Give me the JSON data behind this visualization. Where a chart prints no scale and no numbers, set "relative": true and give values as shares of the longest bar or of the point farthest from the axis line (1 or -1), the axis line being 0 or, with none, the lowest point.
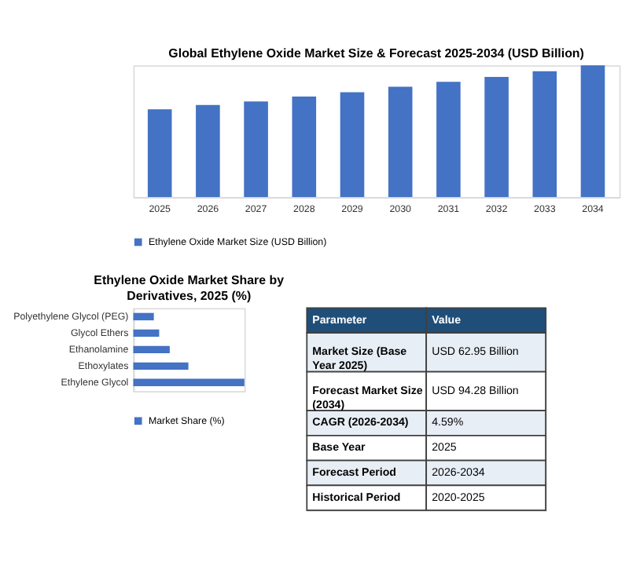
{
  "chart_data": [
    {
      "type": "bar",
      "title": "Global Ethylene Oxide Market Size & Forecast 2025-2034 (USD Billion)",
      "relative": true,
      "legend": "bottom",
      "categories": [
        "2025",
        "2026",
        "2027",
        "2028",
        "2029",
        "2030",
        "2031",
        "2032",
        "2033",
        "2034"
      ],
      "series": [
        {
          "name": "Ethylene Oxide Market Size (USD Billion)",
          "color": "#4472c4",
          "values": [
            0.666,
            0.699,
            0.726,
            0.764,
            0.797,
            0.838,
            0.875,
            0.912,
            0.956,
            1
          ]
        }
      ]
    },
    {
      "type": "bar",
      "title": "Ethylene Oxide Market Share by Derivatives, 2025 (%)",
      "relative": true,
      "orientation": "horizontal",
      "legend": "bottom",
      "categories": [
        "Polyethylene Glycol (PEG)",
        "Glycol Ethers",
        "Ethanolamine",
        "Ethoxylates",
        "Ethylene Glycol"
      ],
      "series": [
        {
          "name": "Market Share (%)",
          "color": "#4472c4",
          "values": [
            0.185,
            0.233,
            0.328,
            0.496,
            1
          ]
        }
      ]
    },
    {
      "type": "other",
      "annotations": [
        "Parameter",
        "Value",
        "Market Size (Base Year 2025)",
        "USD 62.95 Billion",
        "Forecast Market Size (2034)",
        "USD 94.28 Billion",
        "CAGR (2026-2034)",
        "4.59%",
        "Base Year",
        "2025",
        "Forecast Period",
        "2026-2034",
        "Historical Period",
        "2020-2025"
      ]
    }
  ]
}
